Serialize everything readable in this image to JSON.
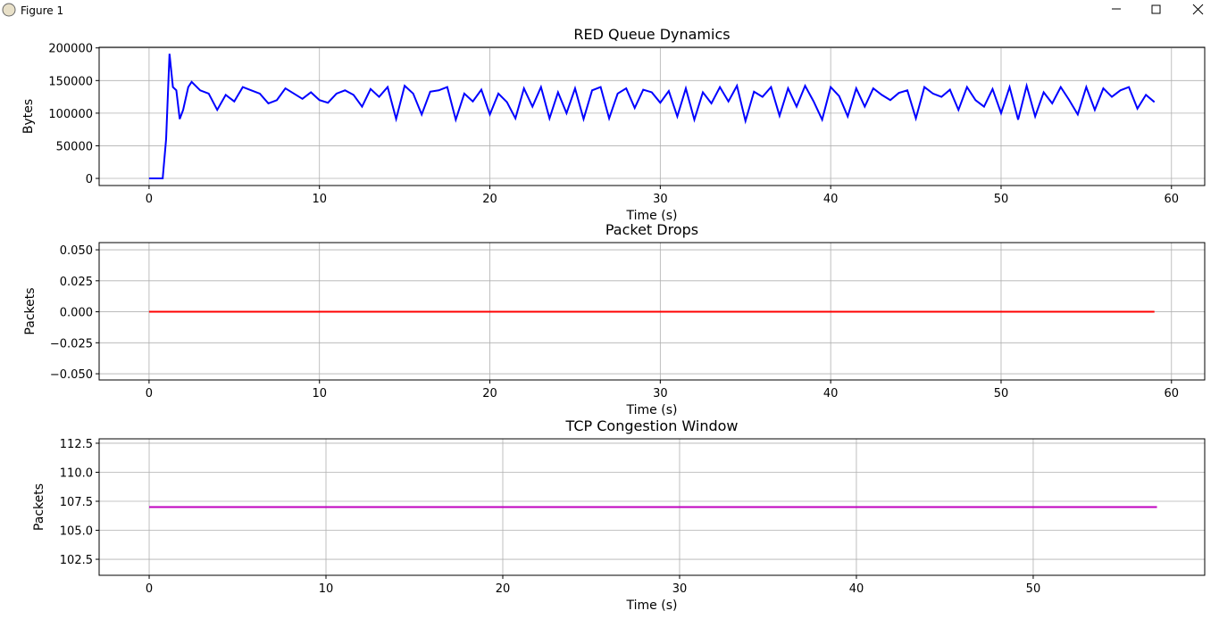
{
  "window": {
    "title": "Figure 1"
  },
  "chart_data": [
    {
      "type": "line",
      "title": "RED Queue Dynamics",
      "x_label": "Time (s)",
      "y_label": "Bytes",
      "x": [
        0,
        0.4,
        0.8,
        1.0,
        1.2,
        1.4,
        1.6,
        1.8,
        2.0,
        2.3,
        2.5,
        3.0,
        3.5,
        4.0,
        4.5,
        5.0,
        5.5,
        6.0,
        6.5,
        7.0,
        7.5,
        8.0,
        8.5,
        9.0,
        9.5,
        10.0,
        10.5,
        11.0,
        11.5,
        12.0,
        12.5,
        13.0,
        13.5,
        14.0,
        14.5,
        15.0,
        15.5,
        16.0,
        16.5,
        17.0,
        17.5,
        18.0,
        18.5,
        19.0,
        19.5,
        20.0,
        20.5,
        21.0,
        21.5,
        22.0,
        22.5,
        23.0,
        23.5,
        24.0,
        24.5,
        25.0,
        25.5,
        26.0,
        26.5,
        27.0,
        27.5,
        28.0,
        28.5,
        29.0,
        29.5,
        30.0,
        30.5,
        31.0,
        31.5,
        32.0,
        32.5,
        33.0,
        33.5,
        34.0,
        34.5,
        35.0,
        35.5,
        36.0,
        36.5,
        37.0,
        37.5,
        38.0,
        38.5,
        39.0,
        39.5,
        40.0,
        40.5,
        41.0,
        41.5,
        42.0,
        42.5,
        43.0,
        43.5,
        44.0,
        44.5,
        45.0,
        45.5,
        46.0,
        46.5,
        47.0,
        47.5,
        48.0,
        48.5,
        49.0,
        49.5,
        50.0,
        50.5,
        51.0,
        51.5,
        52.0,
        52.5,
        53.0,
        53.5,
        54.0,
        54.5,
        55.0,
        55.5,
        56.0,
        56.5,
        57.0,
        57.5,
        58.0,
        58.5,
        59.0
      ],
      "series": [
        {
          "color": "#0000ff",
          "values": [
            0,
            0,
            0,
            60000,
            191000,
            140000,
            135000,
            91000,
            105000,
            140000,
            148000,
            135000,
            130000,
            105000,
            128000,
            118000,
            140000,
            135000,
            130000,
            115000,
            120000,
            138000,
            130000,
            122000,
            132000,
            120000,
            116000,
            130000,
            135000,
            128000,
            110000,
            137000,
            125000,
            140000,
            91000,
            142000,
            130000,
            98000,
            133000,
            135000,
            140000,
            90000,
            130000,
            118000,
            136000,
            98000,
            130000,
            117000,
            92000,
            138000,
            110000,
            140000,
            92000,
            132000,
            100000,
            138000,
            91000,
            135000,
            140000,
            92000,
            130000,
            138000,
            108000,
            136000,
            132000,
            116000,
            134000,
            95000,
            138000,
            90000,
            132000,
            115000,
            140000,
            118000,
            142000,
            88000,
            133000,
            125000,
            140000,
            96000,
            138000,
            110000,
            142000,
            118000,
            90000,
            140000,
            126000,
            95000,
            138000,
            110000,
            138000,
            128000,
            120000,
            131000,
            135000,
            92000,
            140000,
            130000,
            125000,
            136000,
            105000,
            140000,
            120000,
            110000,
            137000,
            100000,
            140000,
            90000,
            142000,
            95000,
            132000,
            115000,
            140000,
            120000,
            98000,
            140000,
            105000,
            138000,
            125000,
            135000,
            140000,
            107000,
            128000,
            117000
          ]
        }
      ],
      "xlim": [
        -2.93,
        61.95
      ],
      "xticks": [
        0,
        10,
        20,
        30,
        40,
        50,
        60
      ],
      "ylim": [
        -10900,
        201000
      ],
      "yticks": [
        0,
        50000,
        100000,
        150000,
        200000
      ],
      "grid": true
    },
    {
      "type": "line",
      "title": "Packet Drops",
      "x_label": "Time (s)",
      "y_label": "Packets",
      "x": [
        0,
        59
      ],
      "series": [
        {
          "color": "#ff0000",
          "values": [
            0,
            0
          ]
        }
      ],
      "xlim": [
        -2.93,
        61.95
      ],
      "xticks": [
        0,
        10,
        20,
        30,
        40,
        50,
        60
      ],
      "ylim": [
        -0.055,
        0.0558
      ],
      "yticks": [
        {
          "value": -0.05,
          "label": "−0.050"
        },
        {
          "value": -0.025,
          "label": "−0.025"
        },
        {
          "value": 0,
          "label": "0.000"
        },
        {
          "value": 0.025,
          "label": "0.025"
        },
        {
          "value": 0.05,
          "label": "0.050"
        }
      ],
      "grid": true
    },
    {
      "type": "line",
      "title": "TCP Congestion Window",
      "x_label": "Time (s)",
      "y_label": "Packets",
      "x": [
        0,
        57
      ],
      "series": [
        {
          "color": "#bf00bf",
          "values": [
            107,
            107
          ]
        }
      ],
      "xlim": [
        -2.83,
        59.7
      ],
      "xticks": [
        0,
        10,
        20,
        30,
        40,
        50
      ],
      "ylim": [
        101.12,
        112.88
      ],
      "yticks": [
        102.5,
        {
          "value": 105,
          "label": "105.0"
        },
        107.5,
        {
          "value": 110,
          "label": "110.0"
        },
        112.5
      ],
      "grid": true
    }
  ]
}
